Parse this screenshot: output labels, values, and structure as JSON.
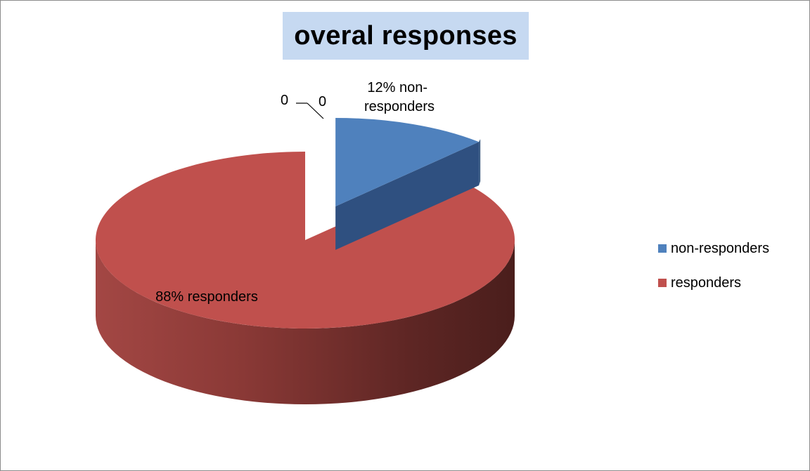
{
  "chart_data": {
    "type": "pie",
    "title": "overal responses",
    "categories": [
      "non-responders",
      "responders",
      "",
      ""
    ],
    "values": [
      12,
      88,
      0,
      0
    ],
    "data_labels": [
      "12% non-responders",
      "88% responders",
      "0",
      "0"
    ],
    "legend": {
      "placement": "right",
      "entries": [
        "non-responders",
        "responders"
      ]
    },
    "colors": [
      "#4f81bd",
      "#c0504d"
    ],
    "style": "3d-exploded"
  }
}
